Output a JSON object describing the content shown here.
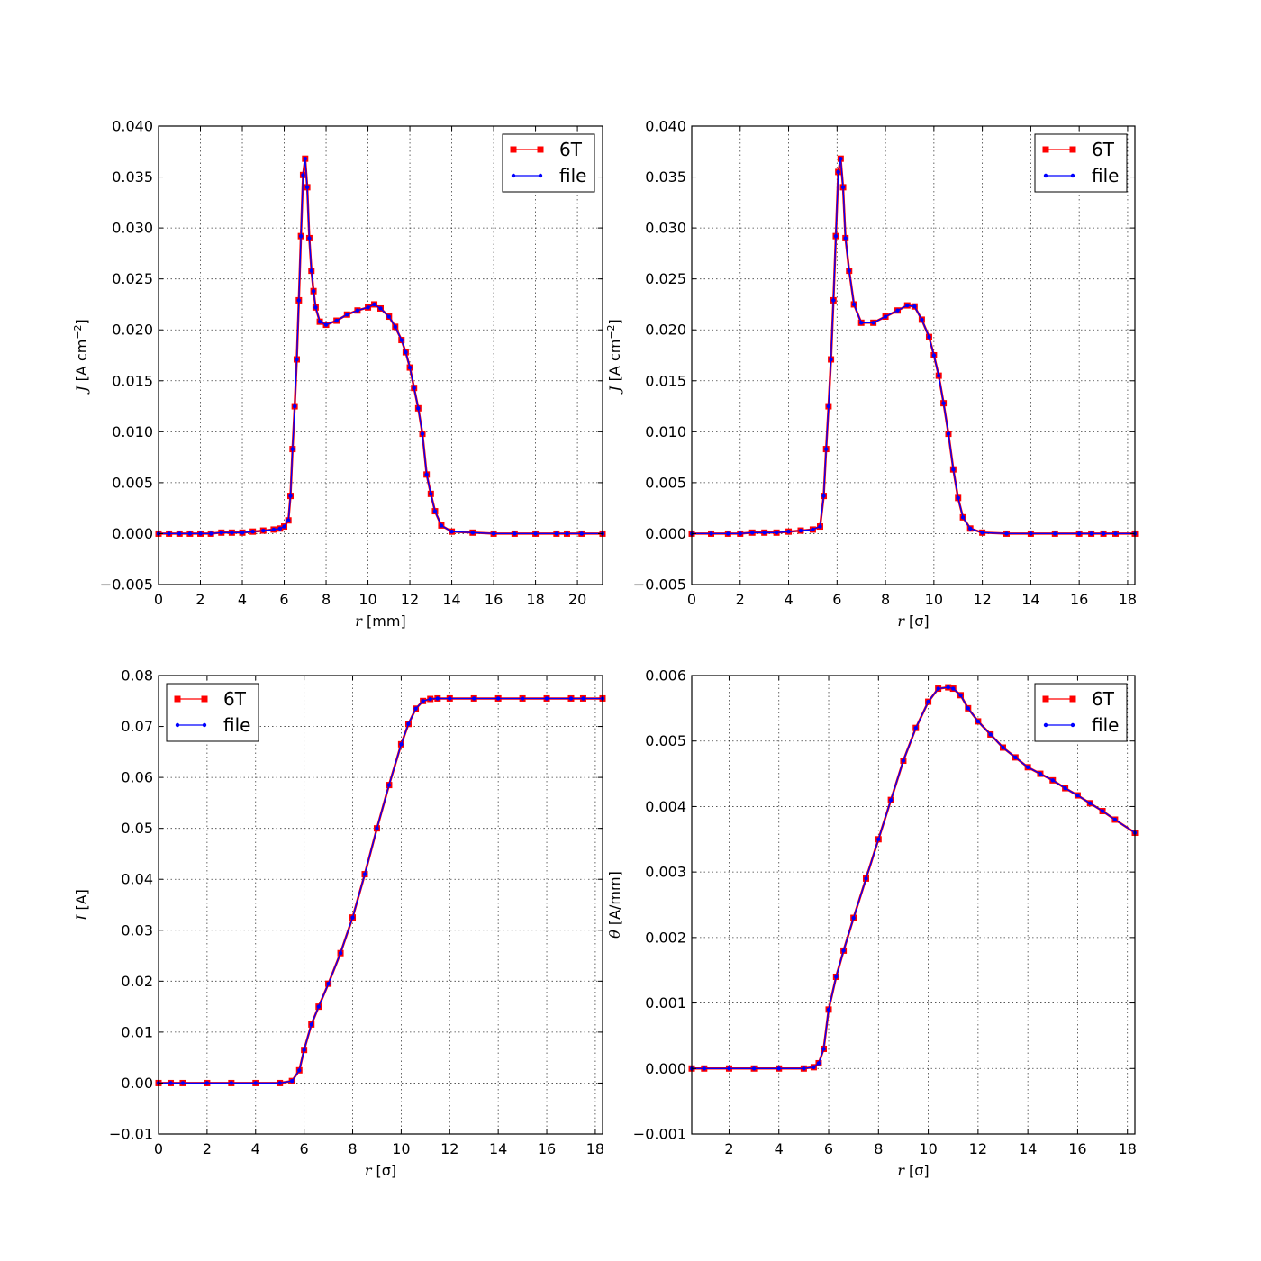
{
  "chart_data": [
    {
      "type": "line",
      "xlabel_var": "r",
      "xlabel_unit": "[mm]",
      "ylabel_var": "J",
      "ylabel_unit": "[A cm",
      "ylabel_sup": "−2",
      "ylabel_close": "]",
      "xlim": [
        0,
        21.2
      ],
      "ylim": [
        -0.005,
        0.04
      ],
      "xticks": [
        0,
        2,
        4,
        6,
        8,
        10,
        12,
        14,
        16,
        18,
        20
      ],
      "yticks": [
        -0.005,
        0.0,
        0.005,
        0.01,
        0.015,
        0.02,
        0.025,
        0.03,
        0.035,
        0.04
      ],
      "ytick_decimals": 3,
      "grid": true,
      "legend_position": "top-right",
      "series": [
        {
          "name": "6T",
          "color": "#ff0000",
          "marker": "square"
        },
        {
          "name": "file",
          "color": "#0000ff",
          "marker": "dot"
        }
      ],
      "x": [
        0.0,
        0.5,
        1.0,
        1.5,
        2.0,
        2.5,
        3.0,
        3.5,
        4.0,
        4.5,
        5.0,
        5.5,
        5.8,
        6.0,
        6.2,
        6.3,
        6.4,
        6.5,
        6.6,
        6.7,
        6.8,
        6.9,
        7.0,
        7.1,
        7.2,
        7.3,
        7.4,
        7.5,
        7.7,
        8.0,
        8.5,
        9.0,
        9.5,
        10.0,
        10.3,
        10.6,
        11.0,
        11.3,
        11.6,
        11.8,
        12.0,
        12.2,
        12.4,
        12.6,
        12.8,
        13.0,
        13.2,
        13.5,
        14.0,
        15.0,
        16.0,
        17.0,
        18.0,
        19.0,
        19.5,
        20.2,
        21.2
      ],
      "y": [
        0.0,
        0.0,
        0.0,
        0.0,
        0.0,
        0.0,
        0.0001,
        0.0001,
        0.0001,
        0.0002,
        0.0003,
        0.0004,
        0.0005,
        0.0007,
        0.0013,
        0.0037,
        0.0083,
        0.0125,
        0.0171,
        0.0229,
        0.0292,
        0.0352,
        0.0368,
        0.034,
        0.029,
        0.0258,
        0.0238,
        0.0222,
        0.0208,
        0.0205,
        0.0209,
        0.0215,
        0.0219,
        0.0222,
        0.0225,
        0.0221,
        0.0213,
        0.0203,
        0.019,
        0.0178,
        0.0163,
        0.0143,
        0.0123,
        0.0098,
        0.0058,
        0.0039,
        0.0022,
        0.0008,
        0.0002,
        0.0001,
        0.0,
        0.0,
        0.0,
        0.0,
        0.0,
        0.0,
        0.0
      ]
    },
    {
      "type": "line",
      "xlabel_var": "r",
      "xlabel_unit": "[σ]",
      "ylabel_var": "J",
      "ylabel_unit": "[A cm",
      "ylabel_sup": "−2",
      "ylabel_close": "]",
      "xlim": [
        0,
        18.3
      ],
      "ylim": [
        -0.005,
        0.04
      ],
      "xticks": [
        0,
        2,
        4,
        6,
        8,
        10,
        12,
        14,
        16,
        18
      ],
      "yticks": [
        -0.005,
        0.0,
        0.005,
        0.01,
        0.015,
        0.02,
        0.025,
        0.03,
        0.035,
        0.04
      ],
      "ytick_decimals": 3,
      "grid": true,
      "legend_position": "top-right",
      "series": [
        {
          "name": "6T",
          "color": "#ff0000",
          "marker": "square"
        },
        {
          "name": "file",
          "color": "#0000ff",
          "marker": "dot"
        }
      ],
      "x": [
        0.0,
        0.8,
        1.5,
        2.0,
        2.5,
        3.0,
        3.5,
        4.0,
        4.5,
        5.0,
        5.3,
        5.45,
        5.55,
        5.65,
        5.75,
        5.85,
        5.95,
        6.05,
        6.15,
        6.25,
        6.35,
        6.5,
        6.7,
        7.0,
        7.5,
        8.0,
        8.5,
        8.9,
        9.2,
        9.5,
        9.8,
        10.0,
        10.2,
        10.4,
        10.6,
        10.8,
        11.0,
        11.2,
        11.5,
        12.0,
        13.0,
        14.0,
        15.0,
        16.0,
        16.5,
        17.0,
        17.5,
        18.3
      ],
      "y": [
        0.0,
        0.0,
        0.0,
        0.0,
        0.0001,
        0.0001,
        0.0001,
        0.0002,
        0.0003,
        0.0004,
        0.0007,
        0.0037,
        0.0083,
        0.0125,
        0.0171,
        0.0229,
        0.0292,
        0.0355,
        0.0368,
        0.034,
        0.029,
        0.0258,
        0.0225,
        0.0207,
        0.0207,
        0.0213,
        0.0219,
        0.0224,
        0.0223,
        0.021,
        0.0193,
        0.0175,
        0.0155,
        0.0128,
        0.0098,
        0.0063,
        0.0035,
        0.0016,
        0.0005,
        0.0001,
        0.0,
        0.0,
        0.0,
        0.0,
        0.0,
        0.0,
        0.0,
        0.0
      ]
    },
    {
      "type": "line",
      "xlabel_var": "r",
      "xlabel_unit": "[σ]",
      "ylabel_var": "I",
      "ylabel_unit": "[A]",
      "ylabel_sup": "",
      "ylabel_close": "",
      "xlim": [
        0,
        18.3
      ],
      "ylim": [
        -0.01,
        0.08
      ],
      "xticks": [
        0,
        2,
        4,
        6,
        8,
        10,
        12,
        14,
        16,
        18
      ],
      "yticks": [
        -0.01,
        0.0,
        0.01,
        0.02,
        0.03,
        0.04,
        0.05,
        0.06,
        0.07,
        0.08
      ],
      "ytick_decimals": 2,
      "grid": true,
      "legend_position": "top-left",
      "series": [
        {
          "name": "6T",
          "color": "#ff0000",
          "marker": "square"
        },
        {
          "name": "file",
          "color": "#0000ff",
          "marker": "dot"
        }
      ],
      "x": [
        0.0,
        0.5,
        1.0,
        2.0,
        3.0,
        4.0,
        5.0,
        5.5,
        5.8,
        6.0,
        6.3,
        6.6,
        7.0,
        7.5,
        8.0,
        8.5,
        9.0,
        9.5,
        10.0,
        10.3,
        10.6,
        10.9,
        11.2,
        11.5,
        12.0,
        13.0,
        14.0,
        15.0,
        16.0,
        17.0,
        17.5,
        18.3
      ],
      "y": [
        0.0,
        0.0,
        0.0,
        0.0,
        0.0,
        0.0,
        0.0,
        0.0004,
        0.0025,
        0.0065,
        0.0115,
        0.015,
        0.0195,
        0.0255,
        0.0325,
        0.041,
        0.05,
        0.0585,
        0.0665,
        0.0705,
        0.0735,
        0.075,
        0.0754,
        0.0755,
        0.0755,
        0.0755,
        0.0755,
        0.0755,
        0.0755,
        0.0755,
        0.0755,
        0.0755
      ]
    },
    {
      "type": "line",
      "xlabel_var": "r",
      "xlabel_unit": "[σ]",
      "ylabel_var": "θ",
      "ylabel_unit": "[A/mm]",
      "ylabel_sup": "",
      "ylabel_close": "",
      "xlim": [
        0.5,
        18.3
      ],
      "ylim": [
        -0.001,
        0.006
      ],
      "xticks": [
        2,
        4,
        6,
        8,
        10,
        12,
        14,
        16,
        18
      ],
      "yticks": [
        -0.001,
        0.0,
        0.001,
        0.002,
        0.003,
        0.004,
        0.005,
        0.006
      ],
      "ytick_decimals": 3,
      "grid": true,
      "legend_position": "top-right",
      "series": [
        {
          "name": "6T",
          "color": "#ff0000",
          "marker": "square"
        },
        {
          "name": "file",
          "color": "#0000ff",
          "marker": "dot"
        }
      ],
      "x": [
        0.5,
        1.0,
        2.0,
        3.0,
        4.0,
        5.0,
        5.4,
        5.6,
        5.8,
        6.0,
        6.3,
        6.6,
        7.0,
        7.5,
        8.0,
        8.5,
        9.0,
        9.5,
        10.0,
        10.4,
        10.8,
        11.0,
        11.3,
        11.6,
        12.0,
        12.5,
        13.0,
        13.5,
        14.0,
        14.5,
        15.0,
        15.5,
        16.0,
        16.5,
        17.0,
        17.5,
        18.3
      ],
      "y": [
        0.0,
        0.0,
        0.0,
        0.0,
        0.0,
        0.0,
        2e-05,
        8e-05,
        0.0003,
        0.0009,
        0.0014,
        0.0018,
        0.0023,
        0.0029,
        0.0035,
        0.0041,
        0.0047,
        0.0052,
        0.0056,
        0.0058,
        0.00582,
        0.0058,
        0.0057,
        0.0055,
        0.0053,
        0.0051,
        0.0049,
        0.00475,
        0.0046,
        0.0045,
        0.0044,
        0.00428,
        0.00417,
        0.00405,
        0.00393,
        0.0038,
        0.0036
      ]
    }
  ]
}
